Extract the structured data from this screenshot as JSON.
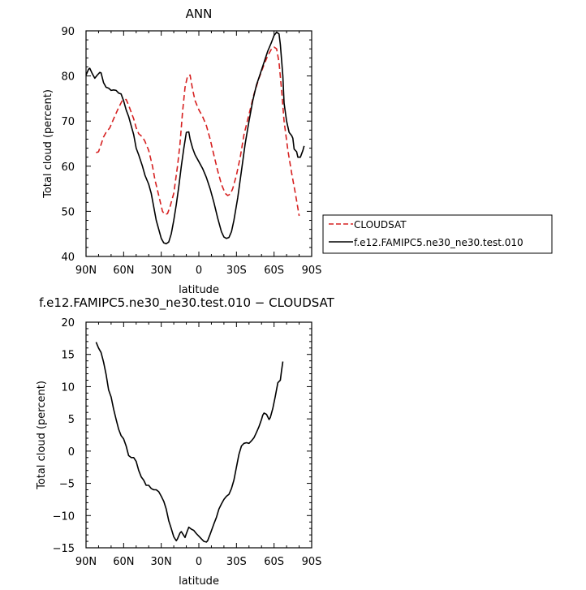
{
  "chart_data": [
    {
      "type": "line",
      "title": "ANN",
      "xlabel": "latitude",
      "ylabel": "Total cloud (percent)",
      "xlim": [
        90,
        -90
      ],
      "ylim": [
        40,
        90
      ],
      "xticks": [
        90,
        60,
        30,
        0,
        -30,
        -60,
        -90
      ],
      "xticklabels": [
        "90N",
        "60N",
        "30N",
        "0",
        "30S",
        "60S",
        "90S"
      ],
      "yticks": [
        40,
        50,
        60,
        70,
        80,
        90
      ],
      "legend_position": "right",
      "series": [
        {
          "name": "CLOUDSAT",
          "color": "#d62020",
          "dash": true,
          "points": [
            [
              82,
              63
            ],
            [
              80,
              63.2
            ],
            [
              78,
              64.8
            ],
            [
              76,
              66.5
            ],
            [
              74,
              67.5
            ],
            [
              71,
              68.5
            ],
            [
              68,
              70.5
            ],
            [
              64,
              73
            ],
            [
              61,
              74.6
            ],
            [
              58,
              74.8
            ],
            [
              56,
              73.5
            ],
            [
              54,
              72
            ],
            [
              52,
              70.5
            ],
            [
              50,
              68.5
            ],
            [
              48,
              67.2
            ],
            [
              45,
              66.5
            ],
            [
              43,
              65.5
            ],
            [
              40,
              63.5
            ],
            [
              37,
              60
            ],
            [
              35,
              57
            ],
            [
              32,
              53.5
            ],
            [
              29,
              50
            ],
            [
              27,
              49.3
            ],
            [
              25,
              49.5
            ],
            [
              23,
              51
            ],
            [
              20,
              54
            ],
            [
              17,
              60
            ],
            [
              15,
              65
            ],
            [
              13,
              72
            ],
            [
              11,
              77.5
            ],
            [
              9,
              80
            ],
            [
              7,
              80.2
            ],
            [
              5,
              77
            ],
            [
              3,
              74.5
            ],
            [
              0,
              72.5
            ],
            [
              -3,
              71
            ],
            [
              -6,
              69
            ],
            [
              -9,
              66
            ],
            [
              -12,
              62.5
            ],
            [
              -15,
              59
            ],
            [
              -18,
              56
            ],
            [
              -21,
              54
            ],
            [
              -23,
              53.5
            ],
            [
              -25,
              53.8
            ],
            [
              -27,
              55
            ],
            [
              -30,
              58
            ],
            [
              -33,
              62
            ],
            [
              -36,
              67
            ],
            [
              -40,
              71.5
            ],
            [
              -44,
              76
            ],
            [
              -48,
              79.5
            ],
            [
              -52,
              82.5
            ],
            [
              -55,
              84.5
            ],
            [
              -58,
              86
            ],
            [
              -60,
              86.4
            ],
            [
              -62,
              86
            ],
            [
              -64,
              83
            ],
            [
              -66,
              77
            ],
            [
              -68,
              70
            ],
            [
              -71,
              63.5
            ],
            [
              -74,
              58.5
            ],
            [
              -77,
              54
            ],
            [
              -80,
              49
            ]
          ]
        },
        {
          "name": "f.e12.FAMIPC5.ne30_ne30.test.010",
          "color": "#000000",
          "dash": false,
          "points": [
            [
              90,
              80.2
            ],
            [
              88,
              81.5
            ],
            [
              87,
              81.7
            ],
            [
              85,
              80.5
            ],
            [
              83,
              79.5
            ],
            [
              81,
              80.2
            ],
            [
              79,
              80.8
            ],
            [
              78,
              80.7
            ],
            [
              76,
              78.5
            ],
            [
              74,
              77.5
            ],
            [
              72,
              77.3
            ],
            [
              70,
              76.8
            ],
            [
              68,
              76.9
            ],
            [
              66,
              76.8
            ],
            [
              64,
              76.2
            ],
            [
              62,
              76
            ],
            [
              60,
              74.5
            ],
            [
              58,
              72.5
            ],
            [
              56,
              71
            ],
            [
              54,
              69
            ],
            [
              52,
              67
            ],
            [
              50,
              64
            ],
            [
              48,
              62.5
            ],
            [
              45,
              60
            ],
            [
              43,
              58
            ],
            [
              40,
              56
            ],
            [
              38,
              54
            ],
            [
              36,
              51
            ],
            [
              34,
              48
            ],
            [
              32,
              46
            ],
            [
              30,
              44
            ],
            [
              28,
              43
            ],
            [
              26,
              42.8
            ],
            [
              24,
              43.2
            ],
            [
              22,
              45
            ],
            [
              20,
              48
            ],
            [
              18,
              51.5
            ],
            [
              16,
              55.5
            ],
            [
              14,
              60
            ],
            [
              12,
              64
            ],
            [
              10,
              67.5
            ],
            [
              8,
              67.6
            ],
            [
              7,
              66
            ],
            [
              5,
              64
            ],
            [
              3,
              62.5
            ],
            [
              0,
              61
            ],
            [
              -3,
              59.5
            ],
            [
              -6,
              57.5
            ],
            [
              -9,
              55
            ],
            [
              -12,
              52
            ],
            [
              -15,
              48.5
            ],
            [
              -18,
              45.5
            ],
            [
              -20,
              44.3
            ],
            [
              -22,
              44
            ],
            [
              -24,
              44.2
            ],
            [
              -26,
              45.5
            ],
            [
              -28,
              48
            ],
            [
              -31,
              53
            ],
            [
              -34,
              59
            ],
            [
              -37,
              65
            ],
            [
              -40,
              70
            ],
            [
              -43,
              74.5
            ],
            [
              -46,
              78
            ],
            [
              -49,
              80.5
            ],
            [
              -52,
              83
            ],
            [
              -55,
              85.5
            ],
            [
              -58,
              87.5
            ],
            [
              -60,
              89
            ],
            [
              -62,
              89.7
            ],
            [
              -64,
              89.3
            ],
            [
              -65,
              87
            ],
            [
              -67,
              80
            ],
            [
              -68,
              74
            ],
            [
              -70,
              70
            ],
            [
              -72,
              67.5
            ],
            [
              -74,
              66.8
            ],
            [
              -75,
              66.2
            ],
            [
              -76,
              63.8
            ],
            [
              -78,
              63.2
            ],
            [
              -79,
              62
            ],
            [
              -81,
              62
            ],
            [
              -83,
              63.5
            ],
            [
              -84,
              64.5
            ]
          ]
        }
      ]
    },
    {
      "type": "line",
      "title": "f.e12.FAMIPC5.ne30_ne30.test.010 − CLOUDSAT",
      "xlabel": "latitude",
      "ylabel": "Total cloud (percent)",
      "xlim": [
        90,
        -90
      ],
      "ylim": [
        -15,
        20
      ],
      "xticks": [
        90,
        60,
        30,
        0,
        -30,
        -60,
        -90
      ],
      "xticklabels": [
        "90N",
        "60N",
        "30N",
        "0",
        "30S",
        "60S",
        "90S"
      ],
      "yticks": [
        -15,
        -10,
        -5,
        0,
        5,
        10,
        15,
        20
      ],
      "yticklabels": [
        "−15",
        "−10",
        "−5",
        "0",
        "5",
        "10",
        "15",
        "20"
      ],
      "series": [
        {
          "color": "#000000",
          "dash": false,
          "points": [
            [
              82,
              16.9
            ],
            [
              80,
              16
            ],
            [
              78,
              15.3
            ],
            [
              76,
              13.8
            ],
            [
              74,
              11.9
            ],
            [
              72,
              9.5
            ],
            [
              70,
              8.4
            ],
            [
              68,
              6.5
            ],
            [
              66,
              4.9
            ],
            [
              64,
              3.4
            ],
            [
              62,
              2.4
            ],
            [
              60,
              1.9
            ],
            [
              58,
              0.8
            ],
            [
              56,
              -0.7
            ],
            [
              54,
              -1
            ],
            [
              52,
              -1
            ],
            [
              50,
              -1.6
            ],
            [
              48,
              -3
            ],
            [
              46,
              -4
            ],
            [
              44,
              -4.5
            ],
            [
              42,
              -5.3
            ],
            [
              40,
              -5.3
            ],
            [
              38,
              -5.8
            ],
            [
              36,
              -6
            ],
            [
              34,
              -6
            ],
            [
              32,
              -6.3
            ],
            [
              30,
              -7
            ],
            [
              28,
              -7.8
            ],
            [
              26,
              -9
            ],
            [
              24,
              -10.8
            ],
            [
              22,
              -12
            ],
            [
              20,
              -13.3
            ],
            [
              18,
              -13.9
            ],
            [
              17,
              -13.6
            ],
            [
              15,
              -12.7
            ],
            [
              14,
              -12.5
            ],
            [
              12,
              -13.1
            ],
            [
              11,
              -13.4
            ],
            [
              10,
              -12.8
            ],
            [
              8,
              -11.8
            ],
            [
              6,
              -12.1
            ],
            [
              4,
              -12.3
            ],
            [
              2,
              -12.8
            ],
            [
              0,
              -13.2
            ],
            [
              -2,
              -13.6
            ],
            [
              -4,
              -14
            ],
            [
              -6,
              -14.1
            ],
            [
              -7,
              -13.9
            ],
            [
              -9,
              -12.9
            ],
            [
              -12,
              -11.3
            ],
            [
              -14,
              -10.3
            ],
            [
              -16,
              -9
            ],
            [
              -18,
              -8.2
            ],
            [
              -20,
              -7.5
            ],
            [
              -22,
              -7
            ],
            [
              -24,
              -6.7
            ],
            [
              -26,
              -5.8
            ],
            [
              -28,
              -4.5
            ],
            [
              -30,
              -2.5
            ],
            [
              -32,
              -0.5
            ],
            [
              -34,
              0.8
            ],
            [
              -36,
              1.2
            ],
            [
              -38,
              1.3
            ],
            [
              -40,
              1.2
            ],
            [
              -42,
              1.6
            ],
            [
              -44,
              2.1
            ],
            [
              -46,
              2.9
            ],
            [
              -48,
              3.8
            ],
            [
              -50,
              4.9
            ],
            [
              -51,
              5.6
            ],
            [
              -52,
              5.9
            ],
            [
              -54,
              5.7
            ],
            [
              -56,
              4.9
            ],
            [
              -57,
              5.2
            ],
            [
              -59,
              6.6
            ],
            [
              -61,
              8.5
            ],
            [
              -63,
              10.6
            ],
            [
              -64,
              10.8
            ],
            [
              -65,
              11
            ],
            [
              -66,
              12.5
            ],
            [
              -67,
              13.9
            ]
          ]
        }
      ]
    }
  ]
}
